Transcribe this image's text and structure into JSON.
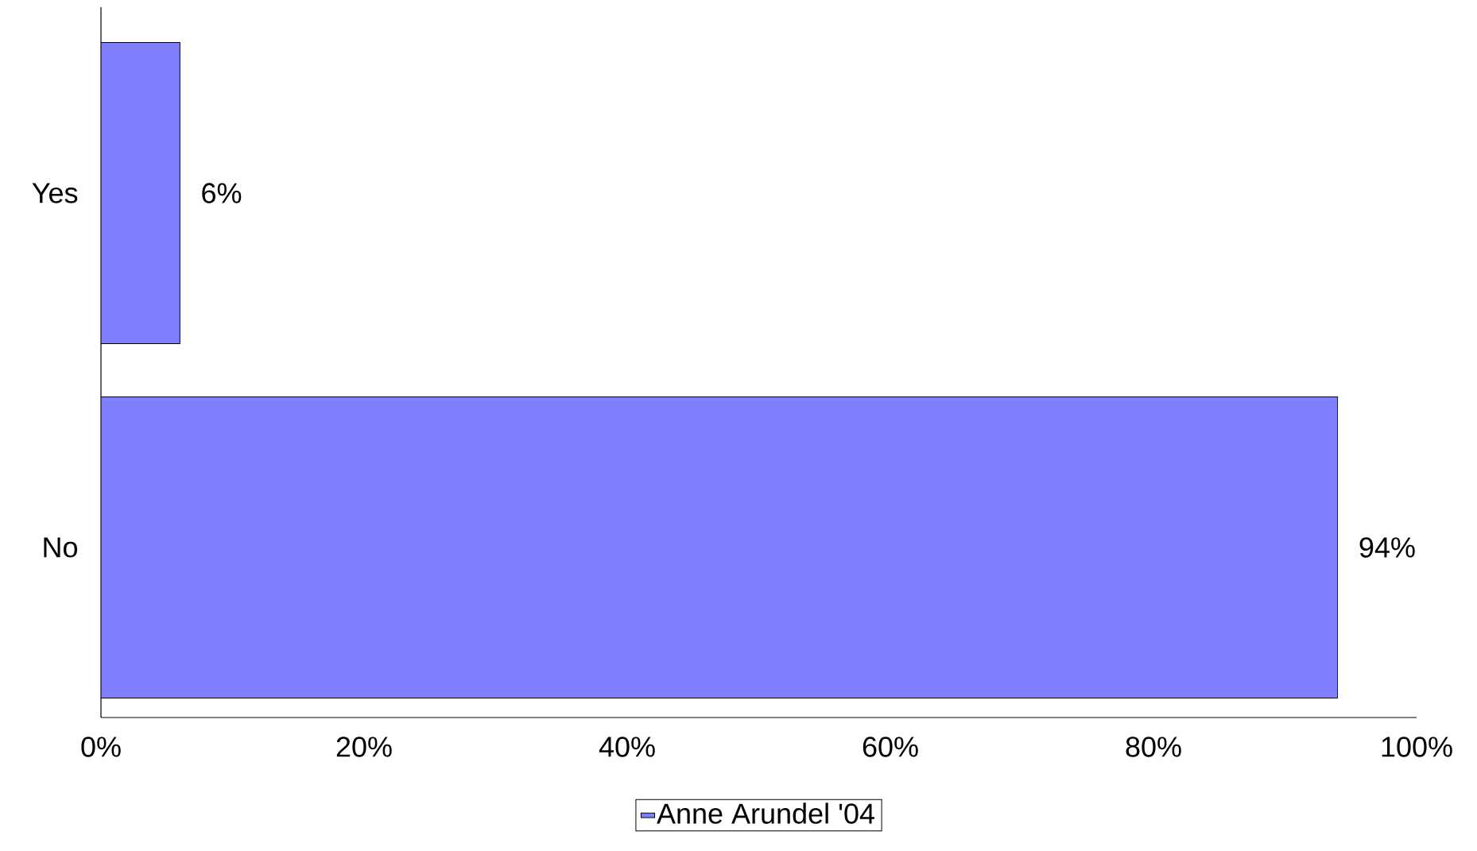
{
  "chart_data": {
    "type": "bar",
    "orientation": "horizontal",
    "categories": [
      "Yes",
      "No"
    ],
    "series": [
      {
        "name": "Anne Arundel '04",
        "color": "#8080ff",
        "values": [
          6,
          94
        ],
        "value_labels": [
          "6%",
          "94%"
        ]
      }
    ],
    "xlim": [
      0,
      100
    ],
    "xticks": [
      {
        "value": 0,
        "label": "0%"
      },
      {
        "value": 20,
        "label": "20%"
      },
      {
        "value": 40,
        "label": "40%"
      },
      {
        "value": 60,
        "label": "60%"
      },
      {
        "value": 80,
        "label": "80%"
      },
      {
        "value": 100,
        "label": "100%"
      }
    ],
    "legend": "bottom"
  }
}
